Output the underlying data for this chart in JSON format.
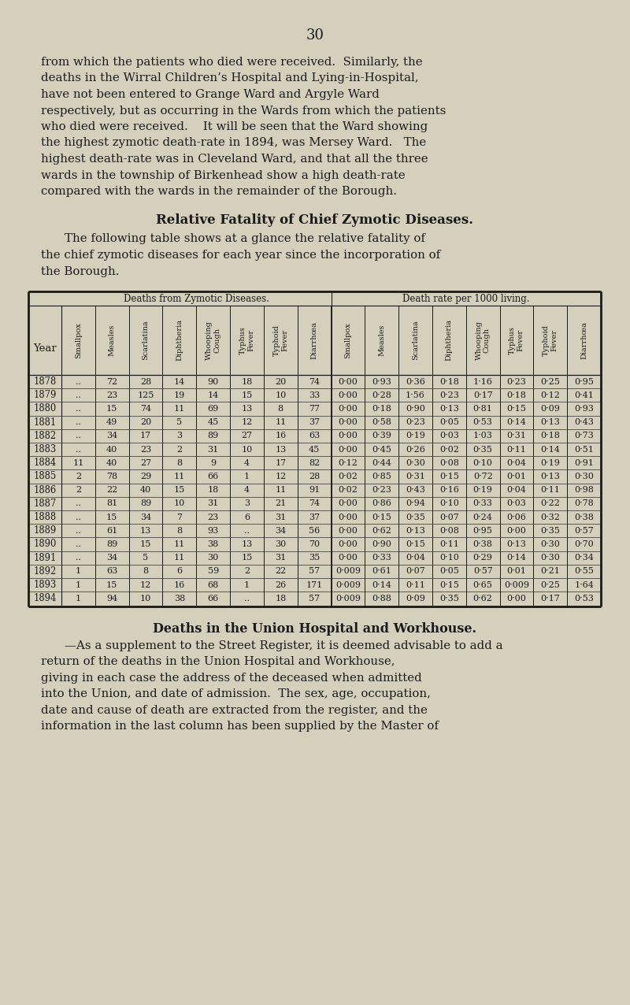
{
  "page_number": "30",
  "bg_color": "#d4d0bc",
  "text_color": "#1a1a1a",
  "para1_lines": [
    "from which the patients who died were received.  Similarly, the",
    "deaths in the Wirral Children’s Hospital and Lying-in-Hospital,",
    "have not been entered to Grange Ward and Argyle Ward",
    "respectively, but as occurring in the Wards from which the patients",
    "who died were received.    It will be seen that the Ward showing",
    "the highest zymotic death-rate in 1894, was Mersey Ward.   The",
    "highest death-rate was in Cleveland Ward, and that all the three",
    "wards in the township of Birkenhead show a high death-rate",
    "compared with the wards in the remainder of the Borough."
  ],
  "section_title": "Relative Fatality of Chief Zymotic Diseases.",
  "para2_lines": [
    "The following table shows at a glance the relative fatality of",
    "the chief zymotic diseases for each year since the incorporation of",
    "the Borough."
  ],
  "table_header1": "Deaths from Zymotic Diseases.",
  "table_header2": "Death rate per 1000 living.",
  "col_headers_deaths": [
    "Smallpox",
    "Measles",
    "Scarlatina",
    "Diphtheria",
    "Whooping\nCough",
    "Typhus\nFever",
    "Typhoid\nFever",
    "Diarrhœa"
  ],
  "col_headers_rates": [
    "Smallpox",
    "Measles",
    "Scarlatina",
    "Diphtheria",
    "Whooping\nCough",
    "Typhus\nFever",
    "Typhoid\nFever",
    "Diarrhœa"
  ],
  "years": [
    1878,
    1879,
    1880,
    1881,
    1882,
    1883,
    1884,
    1885,
    1886,
    1887,
    1888,
    1889,
    1890,
    1891,
    1892,
    1893,
    1894
  ],
  "deaths_data": [
    [
      "..",
      72,
      28,
      14,
      90,
      18,
      20,
      74
    ],
    [
      "..",
      23,
      125,
      19,
      14,
      15,
      10,
      33
    ],
    [
      "..",
      15,
      74,
      11,
      69,
      13,
      8,
      77
    ],
    [
      "..",
      49,
      20,
      5,
      45,
      12,
      11,
      37
    ],
    [
      "..",
      34,
      17,
      3,
      89,
      27,
      16,
      63
    ],
    [
      "..",
      40,
      23,
      2,
      31,
      10,
      13,
      45
    ],
    [
      11,
      40,
      27,
      8,
      9,
      4,
      17,
      82
    ],
    [
      2,
      78,
      29,
      11,
      66,
      1,
      12,
      28
    ],
    [
      2,
      22,
      40,
      15,
      18,
      4,
      11,
      91
    ],
    [
      "..",
      81,
      89,
      10,
      31,
      3,
      21,
      74
    ],
    [
      "..",
      15,
      34,
      7,
      23,
      6,
      31,
      37
    ],
    [
      "..",
      61,
      13,
      8,
      93,
      "..",
      34,
      56
    ],
    [
      "..",
      89,
      15,
      11,
      38,
      13,
      30,
      70
    ],
    [
      "..",
      34,
      5,
      11,
      30,
      15,
      31,
      35
    ],
    [
      1,
      63,
      8,
      6,
      59,
      2,
      22,
      57
    ],
    [
      1,
      15,
      12,
      16,
      68,
      1,
      26,
      171
    ],
    [
      1,
      94,
      10,
      38,
      66,
      "..",
      18,
      57
    ]
  ],
  "rates_data": [
    [
      "0·00",
      "0·93",
      "0·36",
      "0·18",
      "1·16",
      "0·23",
      "0·25",
      "0·95"
    ],
    [
      "0·00",
      "0·28",
      "1·56",
      "0·23",
      "0·17",
      "0·18",
      "0·12",
      "0·41"
    ],
    [
      "0·00",
      "0·18",
      "0·90",
      "0·13",
      "0·81",
      "0·15",
      "0·09",
      "0·93"
    ],
    [
      "0·00",
      "0·58",
      "0·23",
      "0·05",
      "0·53",
      "0·14",
      "0·13",
      "0·43"
    ],
    [
      "0·00",
      "0·39",
      "0·19",
      "0·03",
      "1·03",
      "0·31",
      "0·18",
      "0·73"
    ],
    [
      "0·00",
      "0·45",
      "0·26",
      "0·02",
      "0·35",
      "0·11",
      "0·14",
      "0·51"
    ],
    [
      "0·12",
      "0·44",
      "0·30",
      "0·08",
      "0·10",
      "0·04",
      "0·19",
      "0·91"
    ],
    [
      "0·02",
      "0·85",
      "0·31",
      "0·15",
      "0·72",
      "0·01",
      "0·13",
      "0·30"
    ],
    [
      "0·02",
      "0·23",
      "0·43",
      "0·16",
      "0·19",
      "0·04",
      "0·11",
      "0·98"
    ],
    [
      "0·00",
      "0·86",
      "0·94",
      "0·10",
      "0·33",
      "0·03",
      "0·22",
      "0·78"
    ],
    [
      "0·00",
      "0·15",
      "0·35",
      "0·07",
      "0·24",
      "0·06",
      "0·32",
      "0·38"
    ],
    [
      "0·00",
      "0·62",
      "0·13",
      "0·08",
      "0·95",
      "0·00",
      "0·35",
      "0·57"
    ],
    [
      "0·00",
      "0·90",
      "0·15",
      "0·11",
      "0·38",
      "0·13",
      "0·30",
      "0·70"
    ],
    [
      "0·00",
      "0·33",
      "0·04",
      "0·10",
      "0·29",
      "0·14",
      "0·30",
      "0·34"
    ],
    [
      "0·009",
      "0·61",
      "0·07",
      "0·05",
      "0·57",
      "0·01",
      "0·21",
      "0·55"
    ],
    [
      "0·009",
      "0·14",
      "0·11",
      "0·15",
      "0·65",
      "0·009",
      "0·25",
      "1·64"
    ],
    [
      "0·009",
      "0·88",
      "0·09",
      "0·35",
      "0·62",
      "0·00",
      "0·17",
      "0·53"
    ]
  ],
  "para3_title": "Deaths in the Union Hospital and Workhouse.",
  "para3_lines": [
    "—As a supplement to the Street Register, it is deemed advisable to add a",
    "return of the deaths in the Union Hospital and Workhouse,",
    "giving in each case the address of the deceased when admitted",
    "into the Union, and date of admission.  The sex, age, occupation,",
    "date and cause of death are extracted from the register, and the",
    "information in the last column has been supplied by the Master of"
  ]
}
